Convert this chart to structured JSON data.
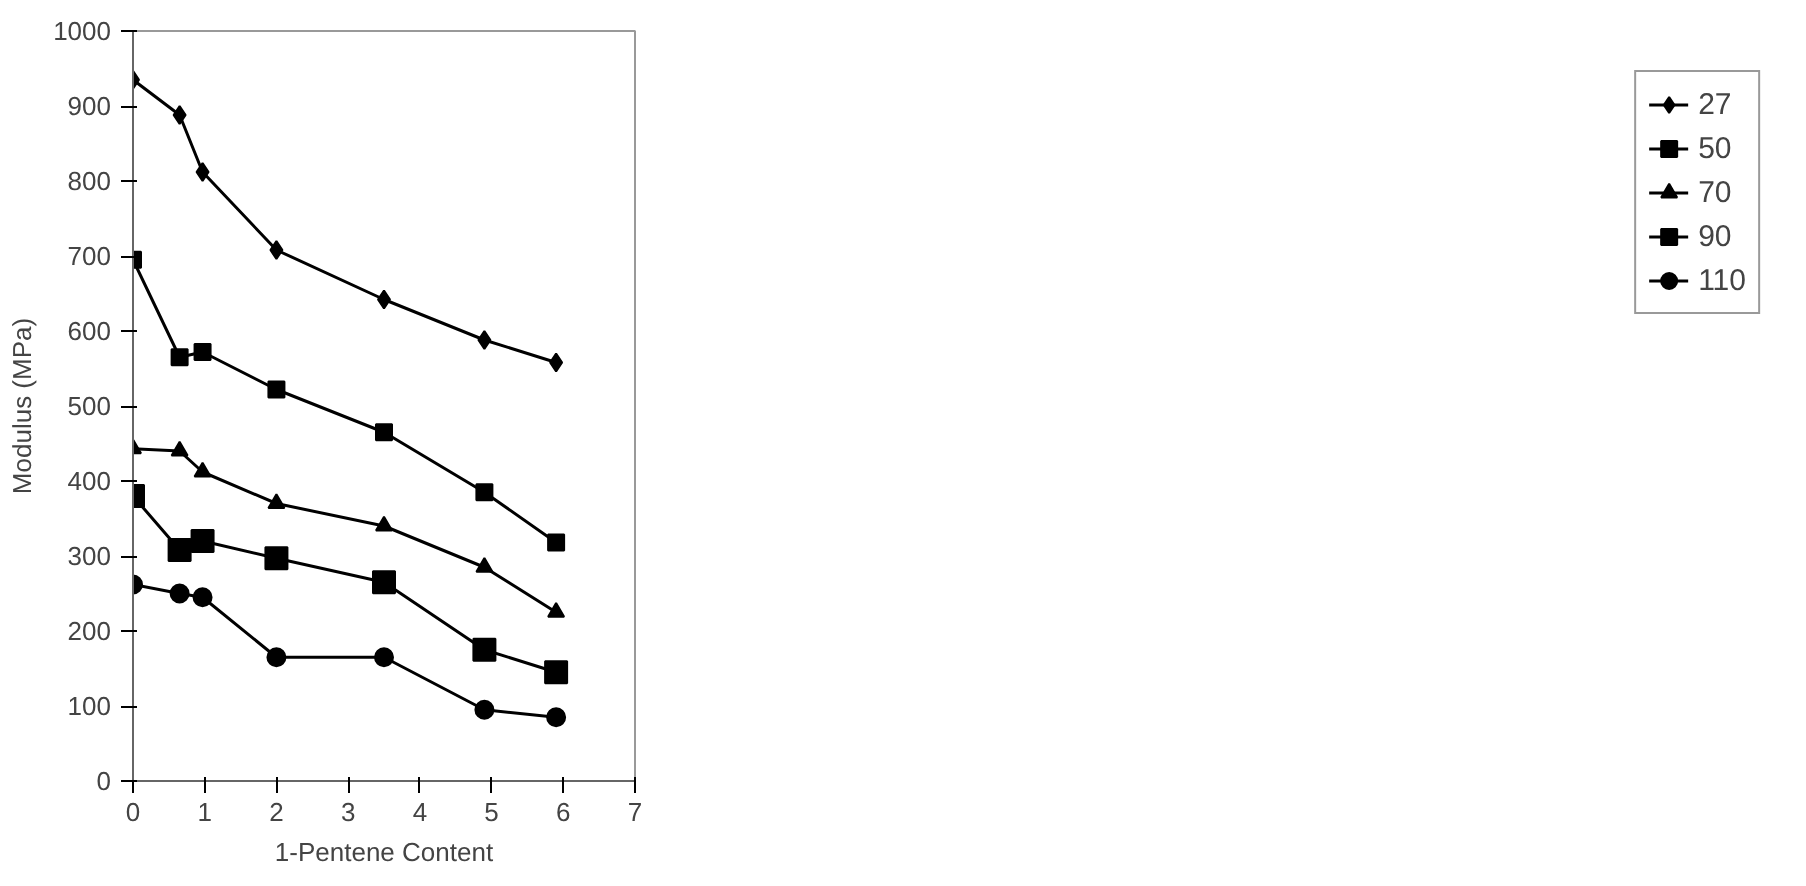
{
  "chart_data": {
    "type": "line",
    "xlabel": "1-Pentene Content",
    "ylabel": "Modulus (MPa)",
    "x": [
      0,
      0.65,
      0.97,
      2,
      3.5,
      4.9,
      5.9
    ],
    "xlim": [
      0,
      7
    ],
    "xticks": [
      0,
      1,
      2,
      3,
      4,
      5,
      6,
      7
    ],
    "ylim": [
      0,
      1000
    ],
    "yticks": [
      0,
      100,
      200,
      300,
      400,
      500,
      600,
      700,
      800,
      900,
      1000
    ],
    "grid": false,
    "legend": "right",
    "series": [
      {
        "name": "27",
        "color": "#000000",
        "marker": "diamond",
        "values": [
          935,
          888,
          812,
          708,
          642,
          588,
          558
        ]
      },
      {
        "name": "50",
        "color": "#000000",
        "marker": "square",
        "values": [
          695,
          565,
          572,
          522,
          465,
          385,
          318
        ]
      },
      {
        "name": "70",
        "color": "#000000",
        "marker": "triangle",
        "values": [
          443,
          440,
          412,
          370,
          340,
          285,
          225
        ]
      },
      {
        "name": "90",
        "color": "#000000",
        "marker": "square",
        "values": [
          380,
          308,
          320,
          297,
          265,
          175,
          145
        ]
      },
      {
        "name": "110",
        "color": "#000000",
        "marker": "circle",
        "values": [
          262,
          250,
          245,
          165,
          165,
          95,
          85
        ]
      }
    ]
  }
}
